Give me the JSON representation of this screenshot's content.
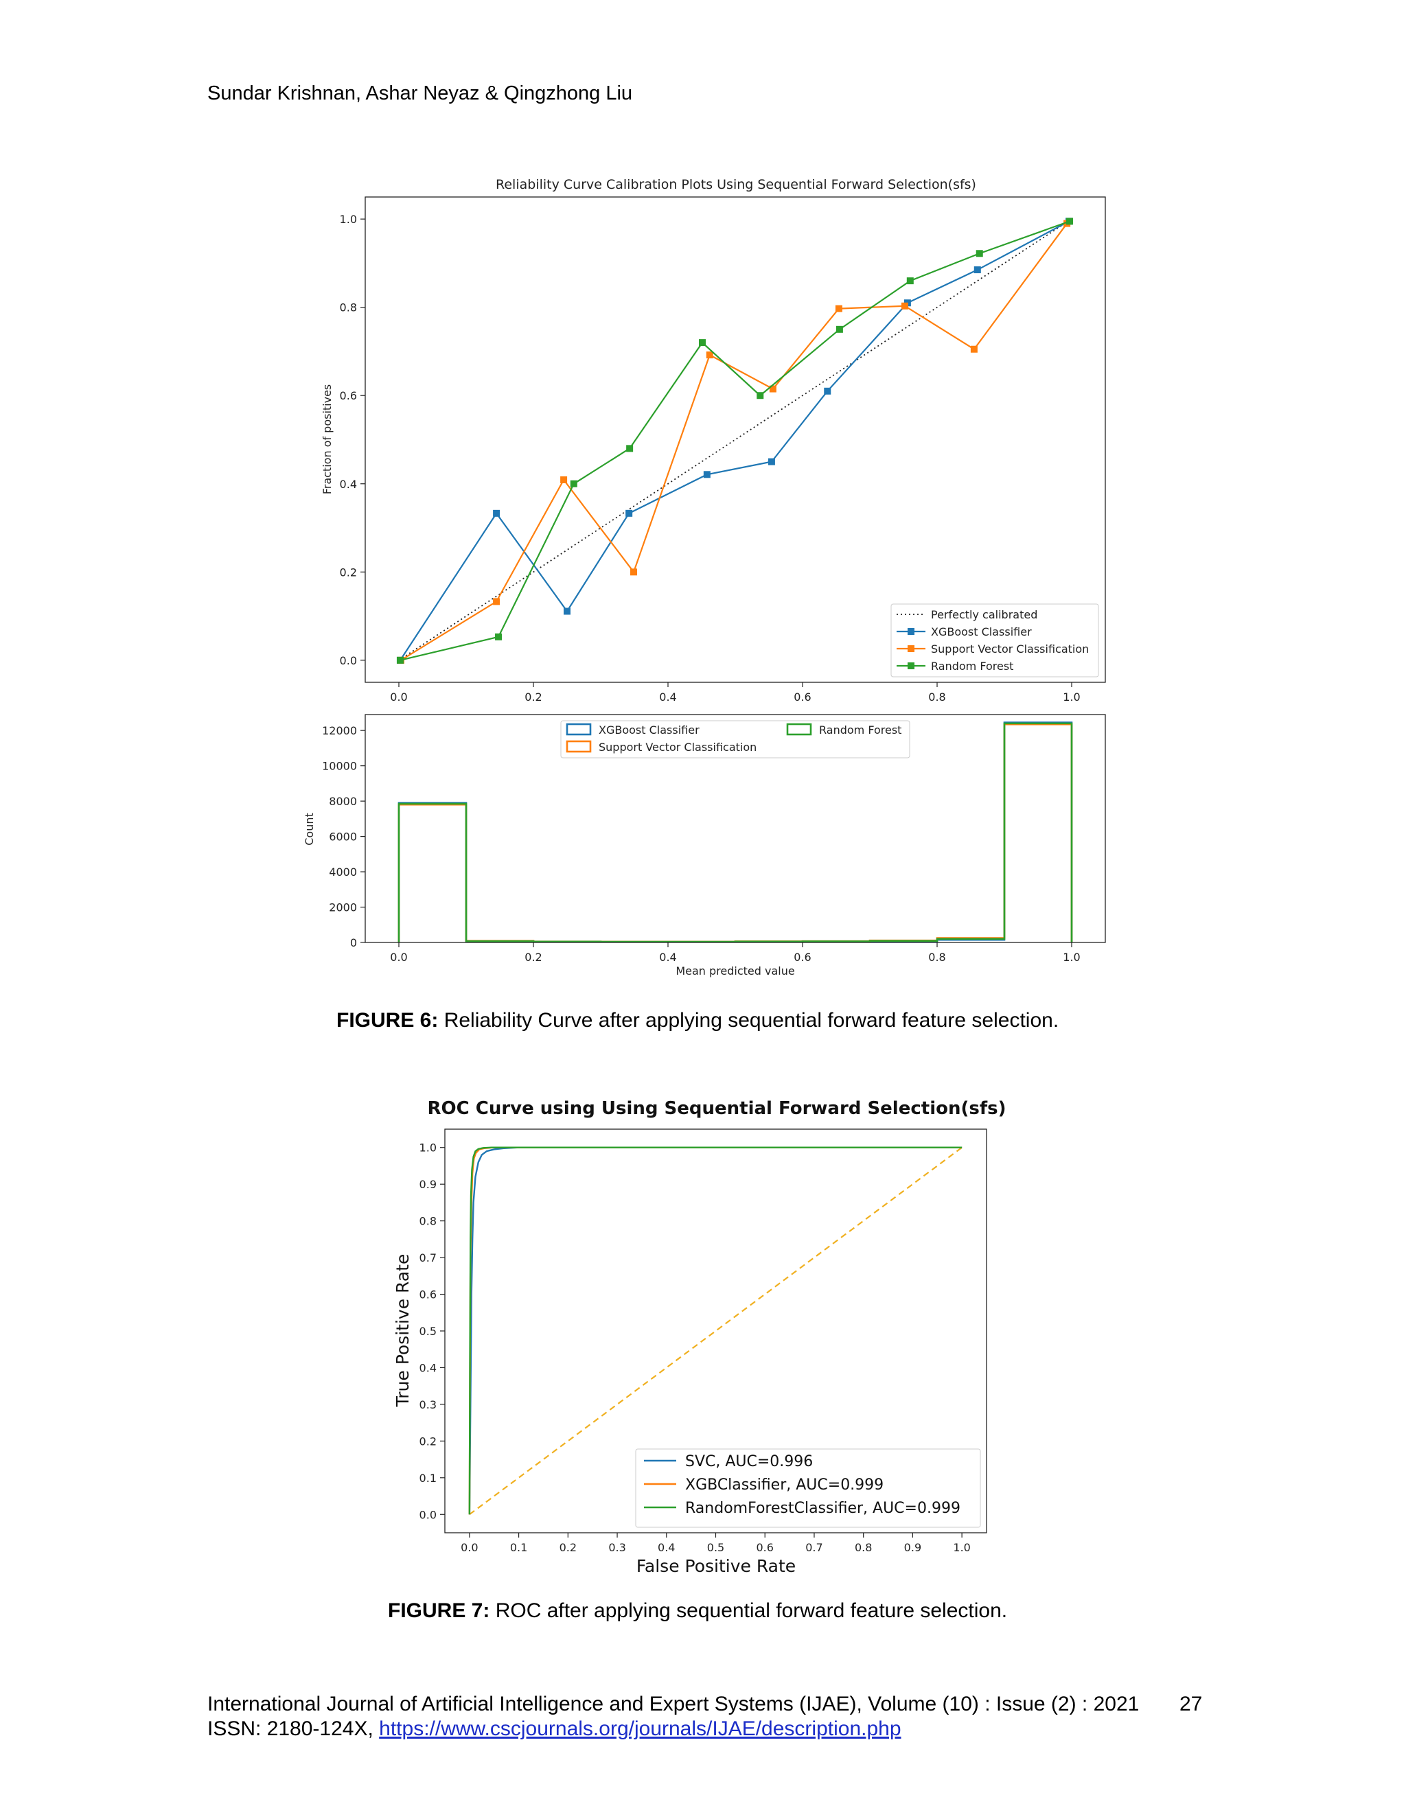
{
  "header": {
    "authors": "Sundar Krishnan, Ashar Neyaz & Qingzhong Liu"
  },
  "figure6": {
    "caption_label": "FIGURE 6:",
    "caption_text": " Reliability Curve after applying sequential forward feature selection."
  },
  "figure7": {
    "caption_label": "FIGURE 7:",
    "caption_text": " ROC after applying sequential forward feature selection."
  },
  "footer": {
    "journal_line": "International Journal of Artificial Intelligence and Expert Systems (IJAE), Volume (10) : Issue (2) : 2021",
    "page_number": "27",
    "issn_prefix": "ISSN: 2180-124X, ",
    "issn_link": "https://www.cscjournals.org/journals/IJAE/description.php"
  },
  "colors": {
    "blue": "#1f77b4",
    "orange": "#ff7f0e",
    "green": "#2ca02c",
    "roc_diag": "#f0b020"
  },
  "chart_data": [
    {
      "type": "line",
      "title": "Reliability Curve Calibration Plots Using Sequential Forward Selection(sfs)",
      "xlabel": "",
      "ylabel": "Fraction of positives",
      "xlim": [
        -0.05,
        1.05
      ],
      "ylim": [
        -0.05,
        1.05
      ],
      "xticks": [
        "0.0",
        "0.2",
        "0.4",
        "0.6",
        "0.8",
        "1.0"
      ],
      "yticks": [
        "0.0",
        "0.2",
        "0.4",
        "0.6",
        "0.8",
        "1.0"
      ],
      "legend_position": "bottom-right",
      "reference": {
        "name": "Perfectly calibrated",
        "x": [
          0,
          1
        ],
        "y": [
          0,
          1
        ]
      },
      "series": [
        {
          "name": "XGBoost Classifier",
          "color": "#1f77b4",
          "x": [
            0.002,
            0.145,
            0.25,
            0.342,
            0.458,
            0.554,
            0.637,
            0.756,
            0.86,
            0.996
          ],
          "y": [
            0.0,
            0.333,
            0.111,
            0.333,
            0.421,
            0.45,
            0.61,
            0.81,
            0.885,
            0.995
          ]
        },
        {
          "name": "Support Vector Classification",
          "color": "#ff7f0e",
          "x": [
            0.003,
            0.145,
            0.245,
            0.349,
            0.462,
            0.556,
            0.654,
            0.752,
            0.855,
            0.993
          ],
          "y": [
            0.0,
            0.133,
            0.409,
            0.2,
            0.692,
            0.615,
            0.797,
            0.803,
            0.705,
            0.99
          ]
        },
        {
          "name": "Random Forest",
          "color": "#2ca02c",
          "x": [
            0.002,
            0.148,
            0.26,
            0.343,
            0.451,
            0.537,
            0.655,
            0.76,
            0.863,
            0.997
          ],
          "y": [
            0.0,
            0.053,
            0.4,
            0.48,
            0.72,
            0.6,
            0.75,
            0.86,
            0.922,
            0.995
          ]
        }
      ]
    },
    {
      "type": "histogram",
      "title": "",
      "xlabel": "Mean predicted value",
      "ylabel": "Count",
      "xlim": [
        -0.05,
        1.05
      ],
      "ylim": [
        0,
        12900
      ],
      "xticks": [
        "0.0",
        "0.2",
        "0.4",
        "0.6",
        "0.8",
        "1.0"
      ],
      "yticks": [
        "0",
        "2000",
        "4000",
        "6000",
        "8000",
        "10000",
        "12000"
      ],
      "legend_position": "top-center",
      "bin_edges": [
        0.0,
        0.1,
        0.2,
        0.3,
        0.4,
        0.5,
        0.6,
        0.7,
        0.8,
        0.9,
        1.0
      ],
      "series": [
        {
          "name": "XGBoost Classifier",
          "color": "#1f77b4",
          "counts": [
            7900,
            60,
            40,
            30,
            30,
            40,
            50,
            70,
            150,
            12450
          ]
        },
        {
          "name": "Support Vector Classification",
          "color": "#ff7f0e",
          "counts": [
            7800,
            90,
            50,
            40,
            40,
            60,
            70,
            110,
            250,
            12350
          ]
        },
        {
          "name": "Random Forest",
          "color": "#2ca02c",
          "counts": [
            7850,
            70,
            45,
            35,
            35,
            50,
            60,
            90,
            200,
            12400
          ]
        }
      ]
    },
    {
      "type": "line",
      "title": "ROC Curve using Using Sequential Forward Selection(sfs)",
      "xlabel": "False Positive Rate",
      "ylabel": "True Positive Rate",
      "xlim": [
        -0.05,
        1.05
      ],
      "ylim": [
        -0.05,
        1.05
      ],
      "xticks": [
        "0.0",
        "0.1",
        "0.2",
        "0.3",
        "0.4",
        "0.5",
        "0.6",
        "0.7",
        "0.8",
        "0.9",
        "1.0"
      ],
      "yticks": [
        "0.0",
        "0.1",
        "0.2",
        "0.3",
        "0.4",
        "0.5",
        "0.6",
        "0.7",
        "0.8",
        "0.9",
        "1.0"
      ],
      "legend_position": "bottom-right",
      "reference": {
        "x": [
          0,
          1
        ],
        "y": [
          0,
          1
        ],
        "color": "#f0b020"
      },
      "series": [
        {
          "name": "SVC, AUC=0.996",
          "color": "#1f77b4",
          "x": [
            0,
            0.002,
            0.004,
            0.006,
            0.008,
            0.012,
            0.018,
            0.025,
            0.035,
            0.05,
            0.07,
            0.1,
            1.0
          ],
          "y": [
            0,
            0.3,
            0.6,
            0.75,
            0.85,
            0.92,
            0.96,
            0.98,
            0.99,
            0.995,
            0.998,
            1.0,
            1.0
          ]
        },
        {
          "name": "XGBClassifier, AUC=0.999",
          "color": "#ff7f0e",
          "x": [
            0,
            0.001,
            0.002,
            0.004,
            0.006,
            0.009,
            0.013,
            0.02,
            0.03,
            0.05,
            1.0
          ],
          "y": [
            0,
            0.4,
            0.7,
            0.85,
            0.93,
            0.97,
            0.985,
            0.995,
            0.998,
            1.0,
            1.0
          ]
        },
        {
          "name": "RandomForestClassifier, AUC=0.999",
          "color": "#2ca02c",
          "x": [
            0,
            0.001,
            0.002,
            0.003,
            0.005,
            0.008,
            0.012,
            0.018,
            0.028,
            0.045,
            1.0
          ],
          "y": [
            0,
            0.45,
            0.75,
            0.87,
            0.94,
            0.975,
            0.99,
            0.996,
            0.999,
            1.0,
            1.0
          ]
        }
      ]
    }
  ]
}
